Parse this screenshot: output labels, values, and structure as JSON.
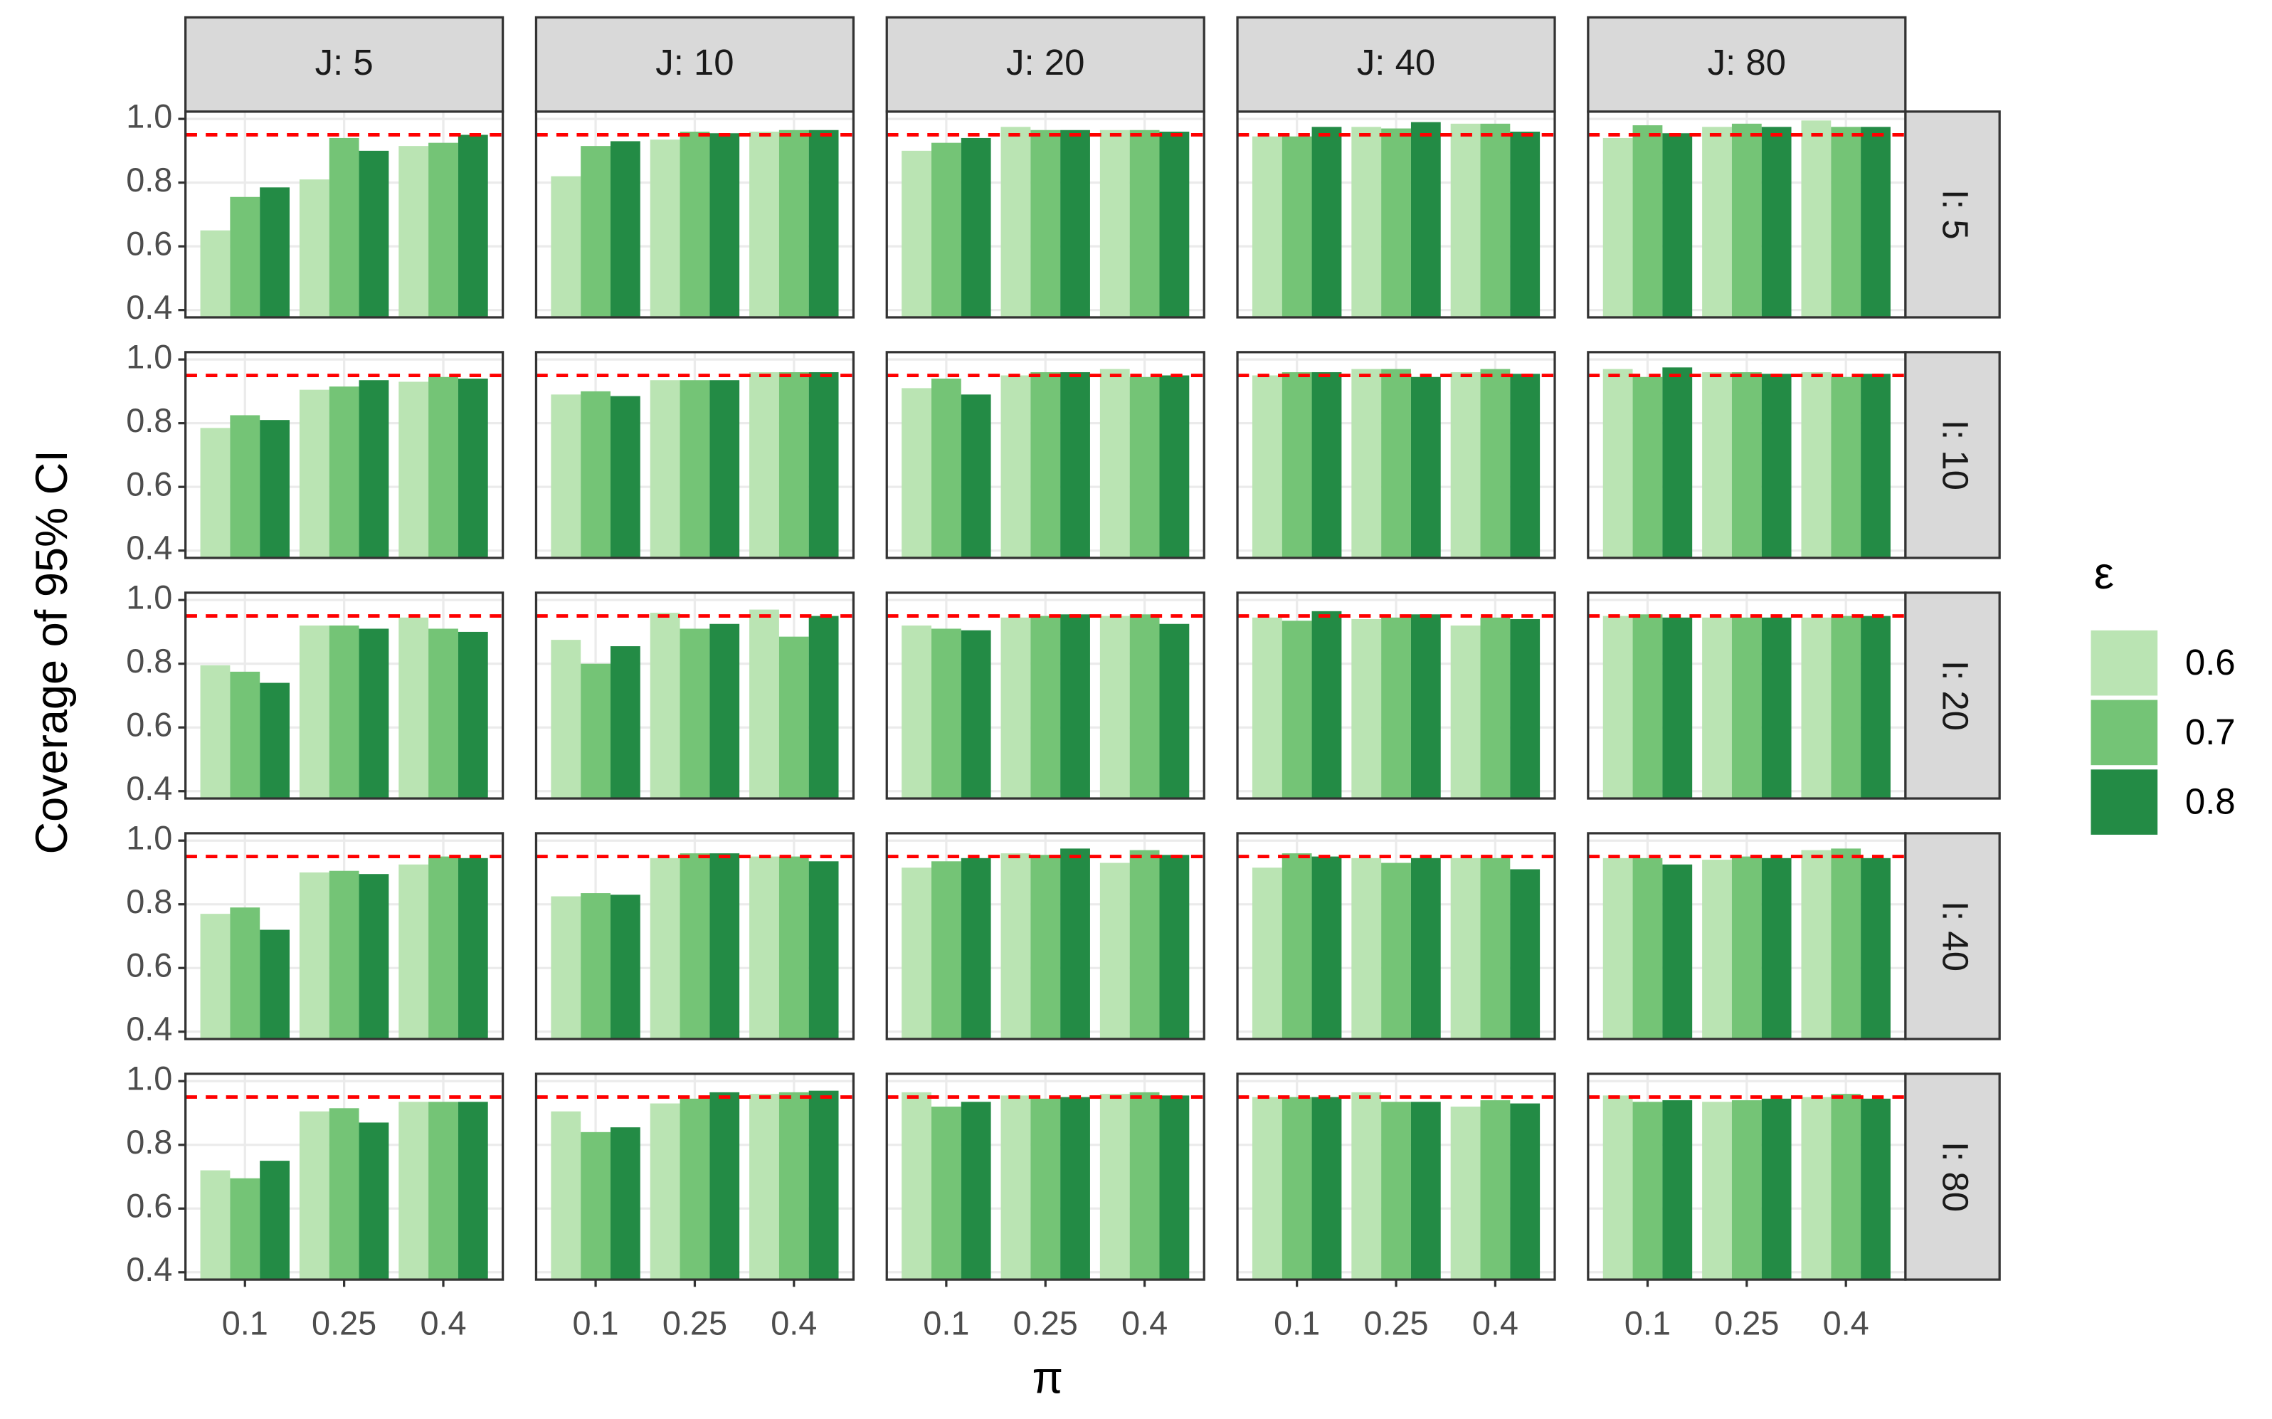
{
  "chart_data": {
    "type": "bar",
    "y_label": "Coverage of 95% CI",
    "x_label": "π",
    "legend_title": "ε",
    "categories": [
      "0.1",
      "0.25",
      "0.4"
    ],
    "series": [
      {
        "name": "0.6",
        "color": "#bae4b3"
      },
      {
        "name": "0.7",
        "color": "#74c476"
      },
      {
        "name": "0.8",
        "color": "#238b45"
      }
    ],
    "col_strips": [
      "J: 5",
      "J: 10",
      "J: 20",
      "J: 40",
      "J: 80"
    ],
    "row_strips": [
      "I: 5",
      "I: 10",
      "I: 20",
      "I: 40",
      "I: 80"
    ],
    "ylim": [
      0.377,
      1.023
    ],
    "yticks": [
      0.4,
      0.6,
      0.8,
      {
        "value": 1,
        "label": "1.0"
      }
    ],
    "hline": 0.95,
    "hline_color": "#ff0000",
    "grid": true,
    "panels": [
      [
        {
          "values": [
            [
              0.65,
              0.81,
              0.915
            ],
            [
              0.755,
              0.94,
              0.925
            ],
            [
              0.785,
              0.9,
              0.95
            ]
          ]
        },
        {
          "values": [
            [
              0.82,
              0.935,
              0.96
            ],
            [
              0.915,
              0.96,
              0.965
            ],
            [
              0.93,
              0.955,
              0.965
            ]
          ]
        },
        {
          "values": [
            [
              0.9,
              0.975,
              0.965
            ],
            [
              0.925,
              0.965,
              0.965
            ],
            [
              0.94,
              0.965,
              0.96
            ]
          ]
        },
        {
          "values": [
            [
              0.945,
              0.975,
              0.985
            ],
            [
              0.945,
              0.97,
              0.985
            ],
            [
              0.975,
              0.99,
              0.96
            ]
          ]
        },
        {
          "values": [
            [
              0.94,
              0.975,
              0.995
            ],
            [
              0.98,
              0.985,
              0.975
            ],
            [
              0.955,
              0.975,
              0.975
            ]
          ]
        }
      ],
      [
        {
          "values": [
            [
              0.785,
              0.905,
              0.93
            ],
            [
              0.825,
              0.915,
              0.945
            ],
            [
              0.81,
              0.935,
              0.94
            ]
          ]
        },
        {
          "values": [
            [
              0.89,
              0.935,
              0.96
            ],
            [
              0.9,
              0.935,
              0.96
            ],
            [
              0.885,
              0.935,
              0.96
            ]
          ]
        },
        {
          "values": [
            [
              0.91,
              0.95,
              0.97
            ],
            [
              0.94,
              0.96,
              0.945
            ],
            [
              0.89,
              0.96,
              0.95
            ]
          ]
        },
        {
          "values": [
            [
              0.95,
              0.97,
              0.96
            ],
            [
              0.96,
              0.97,
              0.97
            ],
            [
              0.96,
              0.945,
              0.955
            ]
          ]
        },
        {
          "values": [
            [
              0.97,
              0.96,
              0.96
            ],
            [
              0.945,
              0.96,
              0.945
            ],
            [
              0.975,
              0.955,
              0.955
            ]
          ]
        }
      ],
      [
        {
          "values": [
            [
              0.795,
              0.92,
              0.945
            ],
            [
              0.775,
              0.92,
              0.91
            ],
            [
              0.74,
              0.91,
              0.9
            ]
          ]
        },
        {
          "values": [
            [
              0.875,
              0.96,
              0.97
            ],
            [
              0.8,
              0.91,
              0.885
            ],
            [
              0.855,
              0.925,
              0.95
            ]
          ]
        },
        {
          "values": [
            [
              0.92,
              0.945,
              0.95
            ],
            [
              0.91,
              0.95,
              0.955
            ],
            [
              0.905,
              0.955,
              0.925
            ]
          ]
        },
        {
          "values": [
            [
              0.945,
              0.94,
              0.92
            ],
            [
              0.935,
              0.945,
              0.945
            ],
            [
              0.965,
              0.955,
              0.94
            ]
          ]
        },
        {
          "values": [
            [
              0.95,
              0.945,
              0.945
            ],
            [
              0.955,
              0.945,
              0.95
            ],
            [
              0.945,
              0.945,
              0.95
            ]
          ]
        }
      ],
      [
        {
          "values": [
            [
              0.77,
              0.9,
              0.925
            ],
            [
              0.79,
              0.905,
              0.95
            ],
            [
              0.72,
              0.895,
              0.945
            ]
          ]
        },
        {
          "values": [
            [
              0.825,
              0.945,
              0.95
            ],
            [
              0.835,
              0.96,
              0.95
            ],
            [
              0.83,
              0.96,
              0.935
            ]
          ]
        },
        {
          "values": [
            [
              0.915,
              0.96,
              0.93
            ],
            [
              0.935,
              0.955,
              0.97
            ],
            [
              0.945,
              0.975,
              0.955
            ]
          ]
        },
        {
          "values": [
            [
              0.915,
              0.945,
              0.945
            ],
            [
              0.96,
              0.93,
              0.945
            ],
            [
              0.95,
              0.945,
              0.91
            ]
          ]
        },
        {
          "values": [
            [
              0.945,
              0.94,
              0.97
            ],
            [
              0.945,
              0.95,
              0.975
            ],
            [
              0.925,
              0.945,
              0.945
            ]
          ]
        }
      ],
      [
        {
          "values": [
            [
              0.72,
              0.905,
              0.935
            ],
            [
              0.695,
              0.915,
              0.935
            ],
            [
              0.75,
              0.87,
              0.935
            ]
          ]
        },
        {
          "values": [
            [
              0.905,
              0.93,
              0.96
            ],
            [
              0.84,
              0.945,
              0.965
            ],
            [
              0.855,
              0.965,
              0.97
            ]
          ]
        },
        {
          "values": [
            [
              0.965,
              0.955,
              0.96
            ],
            [
              0.92,
              0.945,
              0.965
            ],
            [
              0.935,
              0.95,
              0.955
            ]
          ]
        },
        {
          "values": [
            [
              0.95,
              0.965,
              0.92
            ],
            [
              0.95,
              0.935,
              0.94
            ],
            [
              0.95,
              0.935,
              0.93
            ]
          ]
        },
        {
          "values": [
            [
              0.955,
              0.935,
              0.95
            ],
            [
              0.935,
              0.94,
              0.96
            ],
            [
              0.94,
              0.945,
              0.945
            ]
          ]
        }
      ]
    ]
  }
}
